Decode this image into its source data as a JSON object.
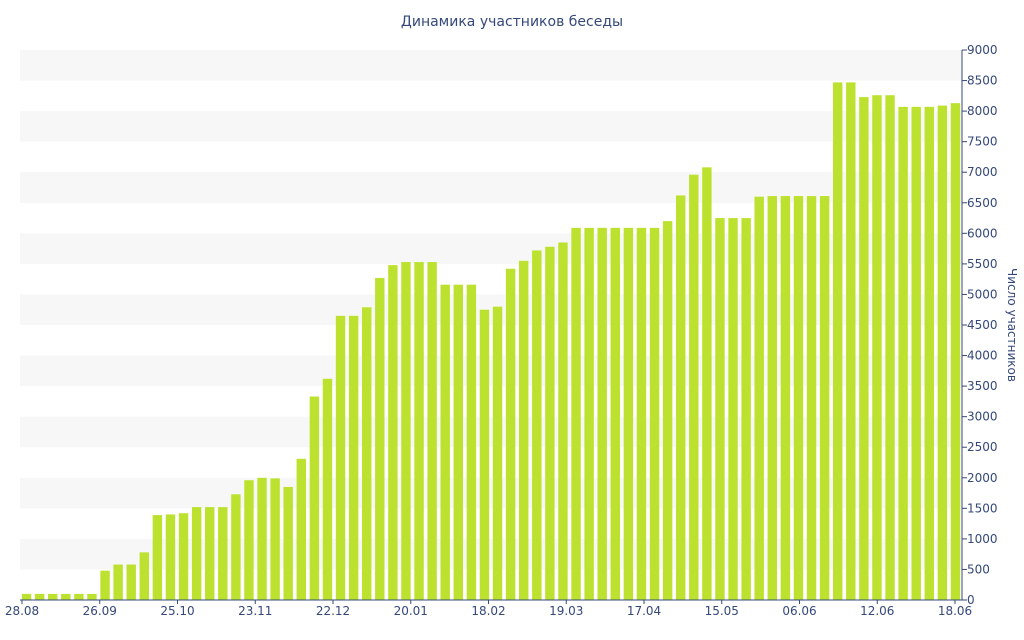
{
  "chart_data": {
    "type": "bar",
    "title": "Динамика участников беседы",
    "xlabel": "",
    "ylabel": "Число участников",
    "ylim": [
      0,
      9000
    ],
    "y_ticks": [
      0,
      500,
      1000,
      1500,
      2000,
      2500,
      3000,
      3500,
      4000,
      4500,
      5000,
      5500,
      6000,
      6500,
      7000,
      7500,
      8000,
      8500,
      9000
    ],
    "y_axis_position": "right",
    "x_tick_labels": [
      "28.08",
      "26.09",
      "25.10",
      "23.11",
      "22.12",
      "20.01",
      "18.02",
      "19.03",
      "17.04",
      "15.05",
      "06.06",
      "12.06",
      "18.06"
    ],
    "bar_color": "#bce22f",
    "band_color": "#f7f7f7",
    "axis_color": "#34487a",
    "values": [
      100,
      100,
      100,
      100,
      100,
      100,
      480,
      580,
      580,
      780,
      1390,
      1400,
      1420,
      1520,
      1520,
      1520,
      1730,
      1960,
      2000,
      1990,
      1850,
      2310,
      3330,
      3620,
      4650,
      4650,
      4790,
      5270,
      5480,
      5530,
      5530,
      5530,
      5160,
      5160,
      5160,
      4750,
      4800,
      5420,
      5550,
      5720,
      5780,
      5850,
      6090,
      6090,
      6090,
      6090,
      6090,
      6090,
      6090,
      6200,
      6620,
      6960,
      7080,
      6250,
      6250,
      6250,
      6600,
      6610,
      6610,
      6610,
      6610,
      6610,
      8470,
      8470,
      8230,
      8260,
      8260,
      8070,
      8070,
      8070,
      8090,
      8130
    ]
  }
}
